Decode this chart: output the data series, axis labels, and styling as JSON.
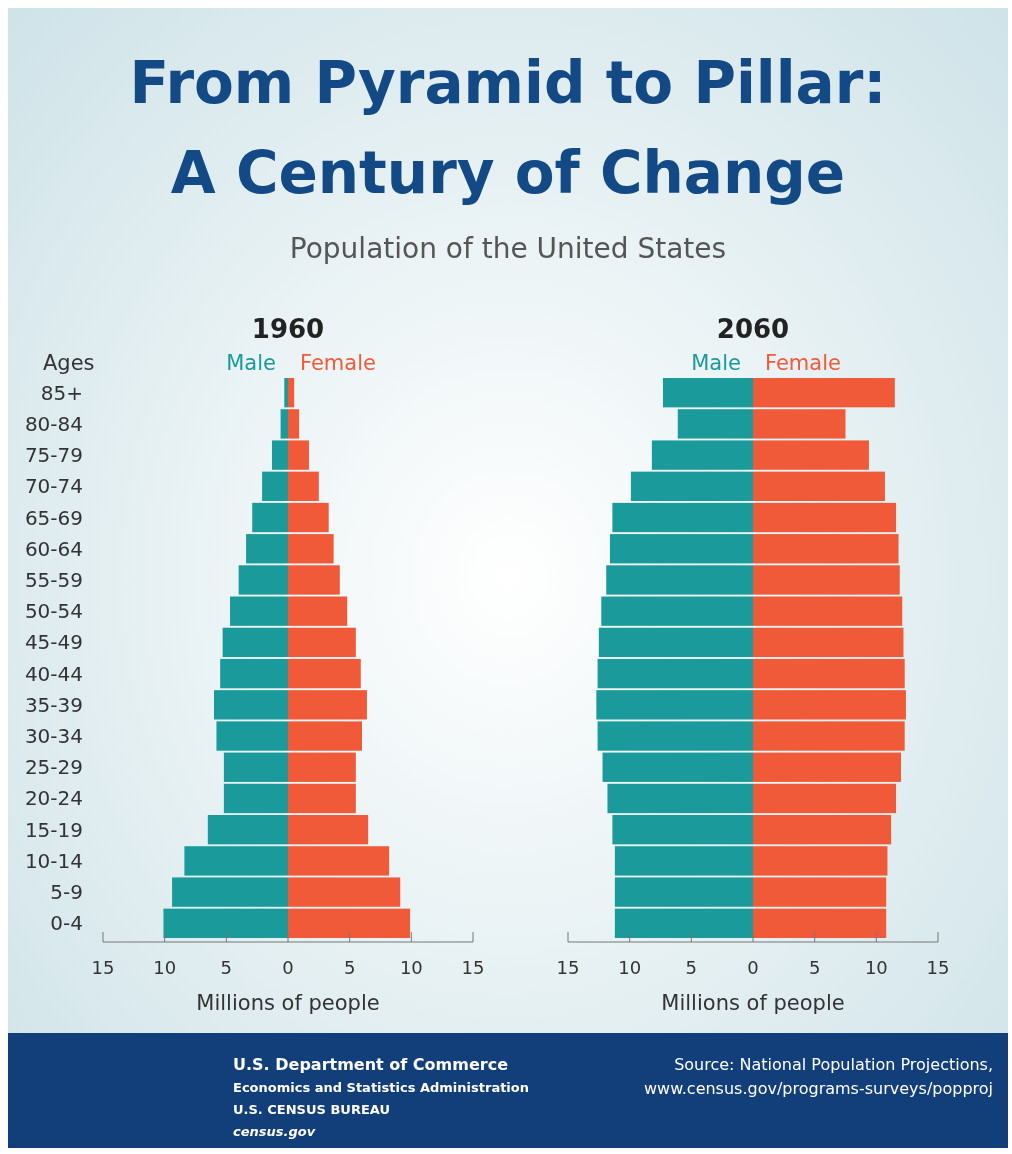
{
  "chart_data": [
    {
      "type": "bar",
      "orientation": "horizontal",
      "stacked": true,
      "title": "1960",
      "annotations": [
        "From Pyramid to Pillar:",
        "A Century of Change",
        "Population of the United States"
      ],
      "ylabel": "Ages",
      "xlabel": "Millions of people",
      "legend": "top",
      "categories": [
        "85+",
        "80-84",
        "75-79",
        "70-74",
        "65-69",
        "60-64",
        "55-59",
        "50-54",
        "45-49",
        "40-44",
        "35-39",
        "30-34",
        "25-29",
        "20-24",
        "15-19",
        "10-14",
        "5-9",
        "0-4"
      ],
      "series": [
        {
          "name": "Male",
          "color": "#1a9a9a",
          "values": [
            -0.3,
            -0.6,
            -1.3,
            -2.1,
            -2.9,
            -3.4,
            -4.0,
            -4.7,
            -5.3,
            -5.5,
            -6.0,
            -5.8,
            -5.2,
            -5.2,
            -6.5,
            -8.4,
            -9.4,
            -10.1
          ]
        },
        {
          "name": "Female",
          "color": "#f15a38",
          "values": [
            0.5,
            0.9,
            1.7,
            2.5,
            3.3,
            3.7,
            4.2,
            4.8,
            5.5,
            5.9,
            6.4,
            6.0,
            5.5,
            5.5,
            6.5,
            8.2,
            9.1,
            9.9
          ]
        }
      ],
      "xlim": [
        -15,
        15
      ],
      "xticks": [
        {
          "value": -15,
          "label": "15"
        },
        {
          "value": -10,
          "label": "10"
        },
        {
          "value": -5,
          "label": "5"
        },
        0,
        5,
        10,
        15
      ]
    },
    {
      "type": "bar",
      "orientation": "horizontal",
      "stacked": true,
      "title": "2060",
      "xlabel": "Millions of people",
      "legend": "top",
      "tick_labels": "x",
      "categories": [
        null,
        null,
        null,
        null,
        null,
        null,
        null,
        null,
        null,
        null,
        null,
        null,
        null,
        null,
        null,
        null,
        null,
        null
      ],
      "series": [
        {
          "name": "Male",
          "color": "#1a9a9a",
          "values": [
            -7.3,
            -6.1,
            -8.2,
            -9.9,
            -11.4,
            -11.6,
            -11.9,
            -12.3,
            -12.5,
            -12.6,
            -12.7,
            -12.6,
            -12.2,
            -11.8,
            -11.4,
            -11.2,
            -11.2,
            -11.2
          ]
        },
        {
          "name": "Female",
          "color": "#f15a38",
          "values": [
            11.5,
            7.5,
            9.4,
            10.7,
            11.6,
            11.8,
            11.9,
            12.1,
            12.2,
            12.3,
            12.4,
            12.3,
            12.0,
            11.6,
            11.2,
            10.9,
            10.8,
            10.8
          ]
        }
      ],
      "xlim": [
        -15,
        15
      ],
      "xticks": [
        {
          "value": -15,
          "label": "15"
        },
        {
          "value": -10,
          "label": "10"
        },
        {
          "value": -5,
          "label": "5"
        },
        0,
        5,
        10,
        15
      ],
      "annotations": [
        "U.S. Department of Commerce",
        "Economics and Statistics Administration",
        "U.S. CENSUS BUREAU",
        "census.gov",
        "Source: National Population Projections,",
        "www.census.gov/programs-surveys/popproj"
      ]
    }
  ]
}
